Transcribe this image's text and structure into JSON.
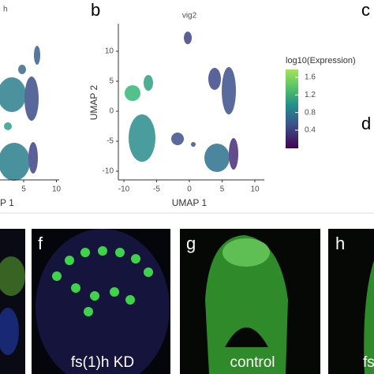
{
  "panel_a": {
    "title": "h",
    "xticks": [
      5,
      10
    ],
    "x_axis_label": "P 1"
  },
  "panel_b": {
    "label": "b",
    "title": "vig2",
    "x_axis_label": "UMAP 1",
    "y_axis_label": "UMAP 2",
    "xticks": [
      -10,
      -5,
      0,
      5,
      10
    ],
    "yticks": [
      10,
      5,
      0,
      -5,
      -10
    ],
    "legend": {
      "title": "log10(Expression)",
      "ticks": [
        1.6,
        1.2,
        0.8,
        0.4
      ]
    }
  },
  "panel_c": {
    "label": "c"
  },
  "panel_d": {
    "label": "d"
  },
  "panel_f": {
    "label": "f",
    "caption": "fs(1)h KD"
  },
  "panel_g": {
    "label": "g",
    "caption": "control"
  },
  "panel_h": {
    "label": "h",
    "caption": "fs"
  }
}
